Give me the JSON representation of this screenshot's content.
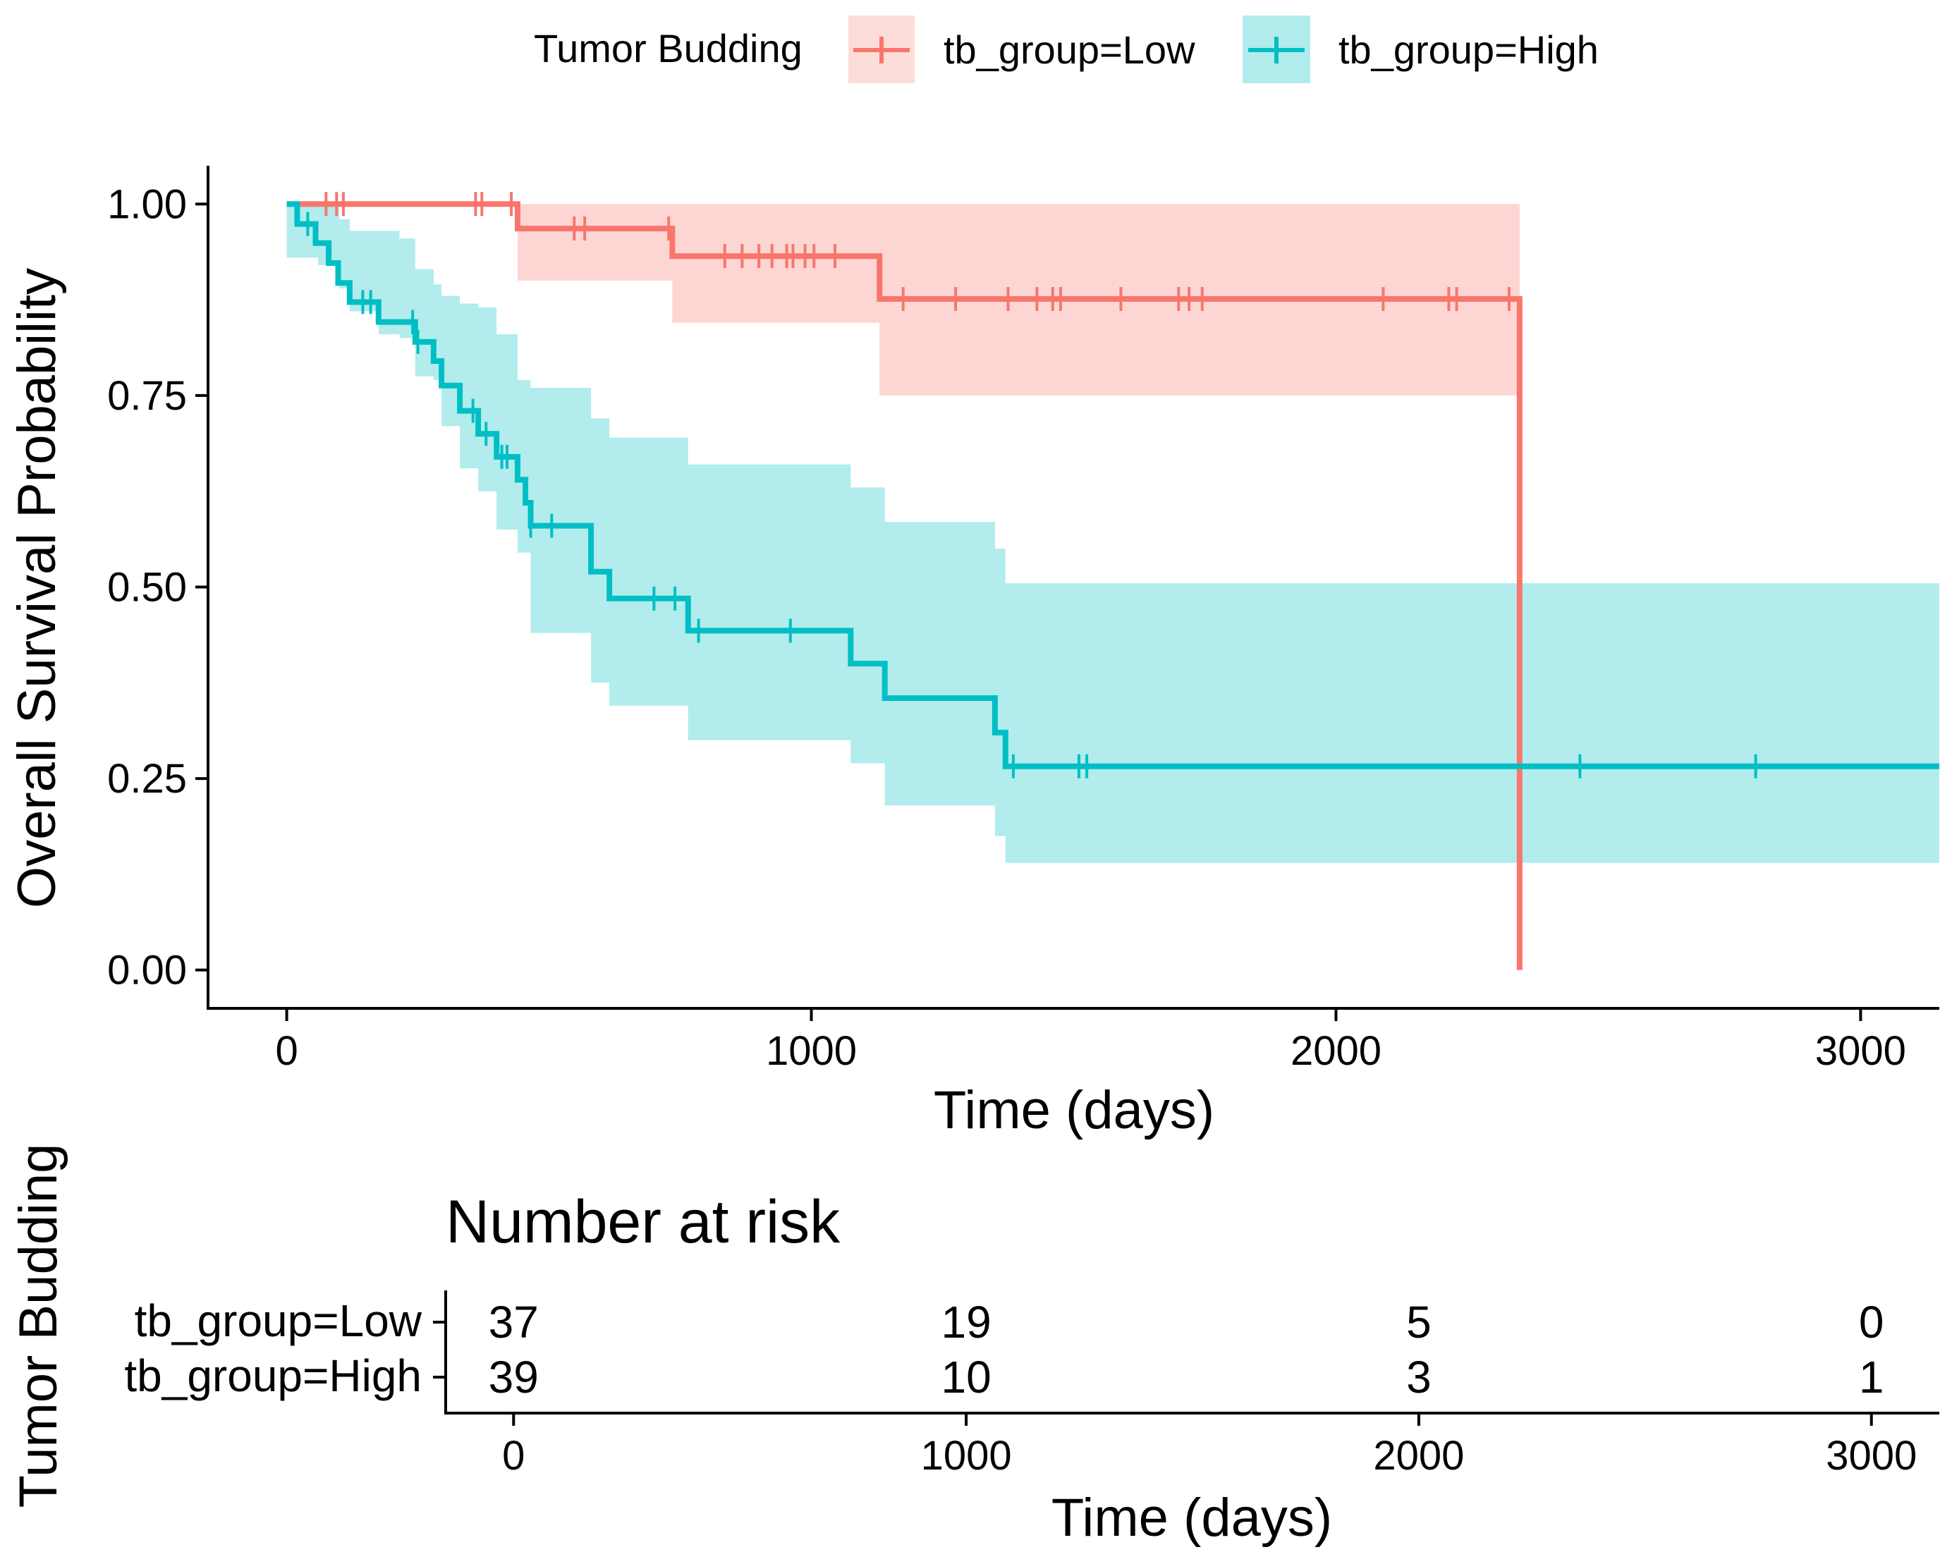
{
  "colors": {
    "low": "#F8766D",
    "high": "#00BFC4",
    "axis": "#000000"
  },
  "legend": {
    "title": "Tumor Budding",
    "items": [
      {
        "label": "tb_group=Low",
        "color": "#F8766D",
        "icon": "line-plus-marker-icon"
      },
      {
        "label": "tb_group=High",
        "color": "#00BFC4",
        "icon": "line-plus-marker-icon"
      }
    ]
  },
  "chart_data": [
    {
      "type": "line",
      "subtype": "kaplan-meier",
      "title": "",
      "xlabel": "Time (days)",
      "ylabel": "Overall Survival Probability",
      "xlim": [
        -150,
        3150
      ],
      "ylim": [
        -0.05,
        1.05
      ],
      "xticks": [
        0,
        1000,
        2000,
        3000
      ],
      "xtick_labels": [
        "0",
        "1000",
        "2000",
        "3000"
      ],
      "yticks": [
        0,
        0.25,
        0.5,
        0.75,
        1.0
      ],
      "ytick_labels": [
        "0.00",
        "0.25",
        "0.50",
        "0.75",
        "1.00"
      ],
      "grid": false,
      "series": [
        {
          "name": "tb_group=Low",
          "color": "#F8766D",
          "steps": [
            [
              0,
              1.0
            ],
            [
              440,
              0.968
            ],
            [
              735,
              0.932
            ],
            [
              1130,
              0.876
            ],
            [
              2350,
              0.0
            ]
          ],
          "ci_steps": [
            [
              0,
              1.0,
              1.0
            ],
            [
              440,
              0.9,
              1.0
            ],
            [
              735,
              0.845,
              1.0
            ],
            [
              1130,
              0.75,
              1.0
            ],
            [
              2350,
              0.75,
              1.0
            ]
          ],
          "end_x": 2350,
          "censor_times": [
            75,
            95,
            108,
            360,
            372,
            428,
            548,
            568,
            728,
            835,
            868,
            900,
            925,
            953,
            965,
            988,
            1005,
            1045,
            1175,
            1275,
            1375,
            1430,
            1460,
            1475,
            1590,
            1700,
            1720,
            1745,
            2090,
            2215,
            2230,
            2330
          ]
        },
        {
          "name": "tb_group=High",
          "color": "#00BFC4",
          "steps": [
            [
              0,
              1.0
            ],
            [
              20,
              0.974
            ],
            [
              55,
              0.949
            ],
            [
              80,
              0.923
            ],
            [
              98,
              0.897
            ],
            [
              120,
              0.872
            ],
            [
              175,
              0.846
            ],
            [
              245,
              0.82
            ],
            [
              280,
              0.795
            ],
            [
              295,
              0.763
            ],
            [
              330,
              0.73
            ],
            [
              365,
              0.7
            ],
            [
              400,
              0.67
            ],
            [
              440,
              0.64
            ],
            [
              455,
              0.61
            ],
            [
              465,
              0.58
            ],
            [
              580,
              0.52
            ],
            [
              615,
              0.485
            ],
            [
              765,
              0.443
            ],
            [
              1075,
              0.4
            ],
            [
              1140,
              0.355
            ],
            [
              1350,
              0.31
            ],
            [
              1370,
              0.266
            ]
          ],
          "ci_steps": [
            [
              0,
              0.93,
              1.0
            ],
            [
              60,
              0.92,
              1.0
            ],
            [
              100,
              0.89,
              0.98
            ],
            [
              120,
              0.86,
              0.965
            ],
            [
              175,
              0.83,
              0.965
            ],
            [
              215,
              0.825,
              0.955
            ],
            [
              245,
              0.775,
              0.915
            ],
            [
              280,
              0.77,
              0.895
            ],
            [
              295,
              0.71,
              0.88
            ],
            [
              330,
              0.655,
              0.87
            ],
            [
              365,
              0.625,
              0.865
            ],
            [
              400,
              0.575,
              0.83
            ],
            [
              440,
              0.545,
              0.77
            ],
            [
              465,
              0.44,
              0.76
            ],
            [
              580,
              0.375,
              0.72
            ],
            [
              615,
              0.345,
              0.695
            ],
            [
              765,
              0.3,
              0.66
            ],
            [
              1075,
              0.27,
              0.63
            ],
            [
              1140,
              0.215,
              0.585
            ],
            [
              1350,
              0.175,
              0.55
            ],
            [
              1370,
              0.14,
              0.505
            ]
          ],
          "end_x": 3150,
          "censor_times": [
            40,
            145,
            160,
            240,
            250,
            355,
            380,
            410,
            420,
            465,
            505,
            700,
            740,
            785,
            960,
            1385,
            1510,
            1525,
            2465,
            2800
          ]
        }
      ]
    },
    {
      "type": "table",
      "title": "Number at risk",
      "ylabel": "Tumor Budding",
      "xlabel": "Time (days)",
      "xlim": [
        -150,
        3150
      ],
      "xticks": [
        0,
        1000,
        2000,
        3000
      ],
      "xtick_labels": [
        "0",
        "1000",
        "2000",
        "3000"
      ],
      "rows": [
        {
          "name": "tb_group=Low",
          "color": "#F8766D",
          "values": [
            "37",
            "19",
            "5",
            "0"
          ]
        },
        {
          "name": "tb_group=High",
          "color": "#00BFC4",
          "values": [
            "39",
            "10",
            "3",
            "1"
          ]
        }
      ]
    }
  ]
}
